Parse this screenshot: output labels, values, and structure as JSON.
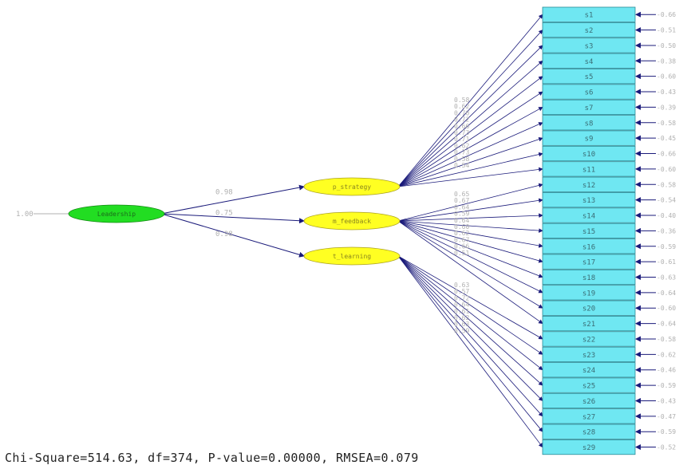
{
  "diagram": {
    "root": {
      "label": "Leadership",
      "input_value": "1.00"
    },
    "factors": [
      {
        "label": "p_strategy",
        "path_value": "0.98"
      },
      {
        "label": "m_feedback",
        "path_value": "0.75"
      },
      {
        "label": "t_learning",
        "path_value": "0.98"
      }
    ],
    "items": [
      {
        "label": "s1",
        "factor": 0,
        "loading": "0.58",
        "error": "-0.66"
      },
      {
        "label": "s2",
        "factor": 0,
        "loading": "0.62",
        "error": "-0.51"
      },
      {
        "label": "s3",
        "factor": 0,
        "loading": "0.70",
        "error": "-0.50"
      },
      {
        "label": "s4",
        "factor": 0,
        "loading": "0.72",
        "error": "-0.38"
      },
      {
        "label": "s5",
        "factor": 0,
        "loading": "0.66",
        "error": "-0.60"
      },
      {
        "label": "s6",
        "factor": 0,
        "loading": "0.73",
        "error": "-0.43"
      },
      {
        "label": "s7",
        "factor": 0,
        "loading": "0.71",
        "error": "-0.39"
      },
      {
        "label": "s8",
        "factor": 0,
        "loading": "0.62",
        "error": "-0.58"
      },
      {
        "label": "s9",
        "factor": 0,
        "loading": "0.73",
        "error": "-0.45"
      },
      {
        "label": "s10",
        "factor": 0,
        "loading": "0.58",
        "error": "-0.66"
      },
      {
        "label": "s11",
        "factor": 0,
        "loading": "0.54",
        "error": "-0.60"
      },
      {
        "label": "s12",
        "factor": 1,
        "loading": "0.65",
        "error": "-0.58"
      },
      {
        "label": "s13",
        "factor": 1,
        "loading": "0.67",
        "error": "-0.54"
      },
      {
        "label": "s14",
        "factor": 1,
        "loading": "0.64",
        "error": "-0.40"
      },
      {
        "label": "s15",
        "factor": 1,
        "loading": "0.59",
        "error": "-0.36"
      },
      {
        "label": "s16",
        "factor": 1,
        "loading": "0.64",
        "error": "-0.59"
      },
      {
        "label": "s17",
        "factor": 1,
        "loading": "0.60",
        "error": "-0.61"
      },
      {
        "label": "s18",
        "factor": 1,
        "loading": "0.62",
        "error": "-0.63"
      },
      {
        "label": "s19",
        "factor": 1,
        "loading": "0.67",
        "error": "-0.64"
      },
      {
        "label": "s20",
        "factor": 1,
        "loading": "0.66",
        "error": "-0.60"
      },
      {
        "label": "s21",
        "factor": 1,
        "loading": "0.51",
        "error": "-0.64"
      },
      {
        "label": "s22",
        "factor": 2,
        "loading": "0.63",
        "error": "-0.58"
      },
      {
        "label": "s23",
        "factor": 2,
        "loading": "0.57",
        "error": "-0.62"
      },
      {
        "label": "s24",
        "factor": 2,
        "loading": "0.72",
        "error": "-0.46"
      },
      {
        "label": "s25",
        "factor": 2,
        "loading": "0.64",
        "error": "-0.59"
      },
      {
        "label": "s26",
        "factor": 2,
        "loading": "0.61",
        "error": "-0.43"
      },
      {
        "label": "s27",
        "factor": 2,
        "loading": "0.62",
        "error": "-0.47"
      },
      {
        "label": "s28",
        "factor": 2,
        "loading": "0.63",
        "error": "-0.59"
      },
      {
        "label": "s29",
        "factor": 2,
        "loading": "0.59",
        "error": "-0.52"
      }
    ],
    "colors": {
      "root_fill": "#22dd22",
      "factor_fill": "#ffff22",
      "item_fill": "#6fe7f2",
      "arrow": "#1a1a7a",
      "label": "#b0b0b0"
    }
  },
  "footer": "Chi-Square=514.63, df=374, P-value=0.00000, RMSEA=0.079"
}
